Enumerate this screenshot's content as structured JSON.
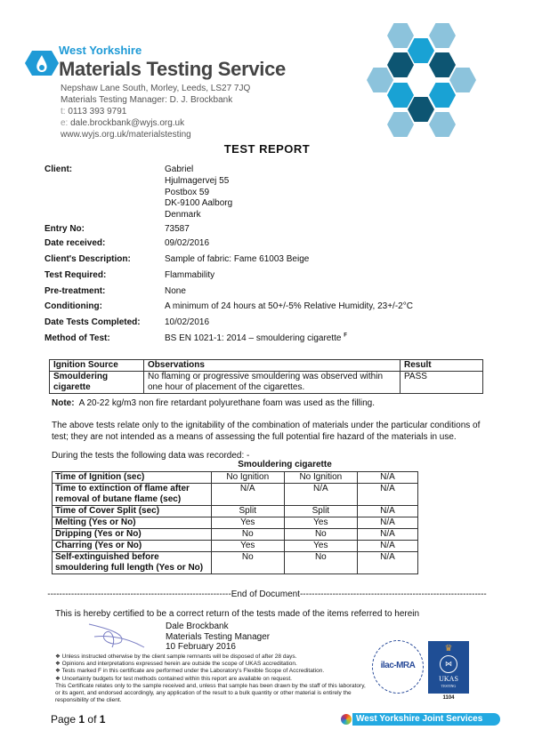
{
  "header": {
    "brand_top": "West Yorkshire",
    "brand_main": "Materials Testing Service",
    "address": "Nepshaw Lane South, Morley, Leeds, LS27 7JQ",
    "manager": "Materials Testing Manager:  D. J. Brockbank",
    "phone_label": "t:",
    "phone": "0113 393 9791",
    "email_label": "e:",
    "email": "dale.brockbank@wyjs.org.uk",
    "website": "www.wyjs.org.uk/materialstesting",
    "colors": {
      "light": "#8cc3dc",
      "mid": "#19a2d4",
      "dark": "#0d5572"
    }
  },
  "title": "TEST REPORT",
  "details": {
    "client_label": "Client:",
    "client_lines": [
      "Gabriel",
      "Hjulmagervej 55",
      "Postbox 59",
      "DK-9100 Aalborg",
      "Denmark"
    ],
    "rows": [
      {
        "label": "Entry No:",
        "value": "73587"
      },
      {
        "label": "Date received:",
        "value": "09/02/2016"
      },
      {
        "label": "Client's Description:",
        "value": "Sample of fabric: Fame 61003 Beige"
      },
      {
        "label": "Test Required:",
        "value": "Flammability"
      },
      {
        "label": "Pre-treatment:",
        "value": "None"
      },
      {
        "label": "Conditioning:",
        "value": "A minimum of 24 hours at 50+/-5% Relative Humidity, 23+/-2°C"
      },
      {
        "label": "Date Tests Completed:",
        "value": "10/02/2016"
      },
      {
        "label": "Method of Test:",
        "value": "BS EN 1021-1: 2014 – smouldering cigarette",
        "sup": "F"
      }
    ]
  },
  "ignition_table": {
    "headers": [
      "Ignition Source",
      "Observations",
      "Result"
    ],
    "row": [
      "Smouldering cigarette",
      "No flaming or progressive smouldering was observed within one hour of placement of the cigarettes.",
      "PASS"
    ]
  },
  "note_label": "Note:",
  "note": "A 20-22 kg/m3 non fire retardant polyurethane foam was used as the filling.",
  "paragraph": "The above tests relate only to the ignitability of the combination of materials under the particular conditions of test; they are not intended as a means of assessing the full potential fire hazard of the materials in use.",
  "during": "During the tests the following data was recorded: -",
  "data_table": {
    "title": "Smouldering cigarette",
    "rows": [
      [
        "Time of Ignition (sec)",
        "No Ignition",
        "No Ignition",
        "N/A"
      ],
      [
        "Time to extinction of flame after removal of butane flame (sec)",
        "N/A",
        "N/A",
        "N/A"
      ],
      [
        "Time of Cover Split (sec)",
        "Split",
        "Split",
        "N/A"
      ],
      [
        "Melting (Yes or No)",
        "Yes",
        "Yes",
        "N/A"
      ],
      [
        "Dripping (Yes or No)",
        "No",
        "No",
        "N/A"
      ],
      [
        "Charring (Yes or No)",
        "Yes",
        "Yes",
        "N/A"
      ],
      [
        "Self-extinguished before smouldering full length (Yes or No)",
        "No",
        "No",
        "N/A"
      ]
    ]
  },
  "end_of_document": "--------------------------------------------------------------End of Document---------------------------------------------------------------",
  "certified": "This is hereby certified to be a correct return of the tests made of the items referred to herein",
  "signatory": {
    "name": "Dale Brockbank",
    "role": "Materials Testing Manager",
    "date": "10 February 2016"
  },
  "bullets": [
    "Unless instructed otherwise by the client sample remnants will be disposed of after 28 days.",
    "Opinions and interpretations expressed herein are outside the scope of UKAS accreditation.",
    "Tests marked F in this certificate are performed under the Laboratory's Flexible Scope of Accreditation.",
    "Uncertainty budgets for test methods contained within this report are available on request."
  ],
  "disclaimer": "This Certificate relates only to the sample received and, unless that sample has been drawn by the staff of this laboratory, or its agent, and endorsed accordingly, any application of the result to a bulk quantity or other material is entirely the responsibility of the client.",
  "logos": {
    "ilac": "ilac-MRA",
    "ukas": "UKAS",
    "ukas_sub": "TESTING",
    "ukas_number": "1104",
    "footer_brand": "West Yorkshire Joint Services"
  },
  "footer": {
    "page_word": "Page",
    "page": "1",
    "of_word": "of",
    "total": "1"
  }
}
